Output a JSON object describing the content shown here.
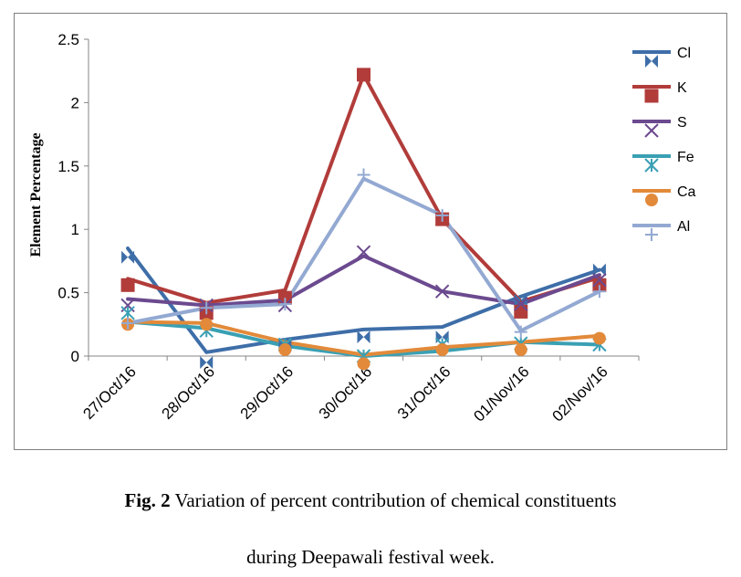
{
  "chart_data": {
    "type": "line",
    "categories": [
      "27/Oct/16",
      "28/Oct/16",
      "29/Oct/16",
      "30/Oct/16",
      "31/Oct/16",
      "01/Nov/16",
      "02/Nov/16"
    ],
    "ylabel": "Element Percentage",
    "xlabel": "",
    "ylim": [
      0,
      2.5
    ],
    "yticks": [
      "0",
      "0.5",
      "1",
      "1.5",
      "2",
      "2.5"
    ],
    "grid": false,
    "legend_position": "right",
    "series": [
      {
        "name": "Cl",
        "color": "#3e6ea8",
        "marker": "triangle",
        "values": [
          0.85,
          0.03,
          0.13,
          0.21,
          0.23,
          0.47,
          0.68
        ],
        "marker_values": [
          0.78,
          -0.05,
          0.09,
          0.15,
          0.15,
          0.44,
          0.68
        ]
      },
      {
        "name": "K",
        "color": "#b13c3a",
        "marker": "square",
        "values": [
          0.61,
          0.42,
          0.52,
          2.22,
          1.08,
          0.43,
          0.62
        ],
        "marker_values": [
          0.56,
          0.34,
          0.46,
          2.22,
          1.08,
          0.35,
          0.56
        ]
      },
      {
        "name": "S",
        "color": "#6b4a8f",
        "marker": "x",
        "values": [
          0.45,
          0.4,
          0.44,
          0.79,
          0.51,
          0.41,
          0.64
        ],
        "marker_values": [
          0.4,
          0.4,
          0.4,
          0.82,
          0.51,
          0.41,
          0.6
        ]
      },
      {
        "name": "Fe",
        "color": "#3aa0b4",
        "marker": "asterisk",
        "values": [
          0.27,
          0.22,
          0.08,
          0.0,
          0.04,
          0.11,
          0.09
        ],
        "marker_values": [
          0.34,
          0.2,
          0.09,
          0.0,
          0.09,
          0.1,
          0.09
        ]
      },
      {
        "name": "Ca",
        "color": "#e28a3a",
        "marker": "circle",
        "values": [
          0.27,
          0.26,
          0.11,
          0.01,
          0.07,
          0.11,
          0.16
        ],
        "marker_values": [
          0.25,
          0.25,
          0.05,
          -0.06,
          0.05,
          0.05,
          0.14
        ]
      },
      {
        "name": "Al",
        "color": "#93a9d2",
        "marker": "plus",
        "values": [
          0.26,
          0.38,
          0.41,
          1.4,
          1.11,
          0.2,
          0.51
        ],
        "marker_values": [
          0.26,
          0.38,
          0.41,
          1.43,
          1.11,
          0.19,
          0.51
        ]
      }
    ]
  },
  "caption": {
    "fig_label": "Fig. 2",
    "line1": " Variation of percent contribution of chemical constituents",
    "line2": "during Deepawali festival week."
  }
}
